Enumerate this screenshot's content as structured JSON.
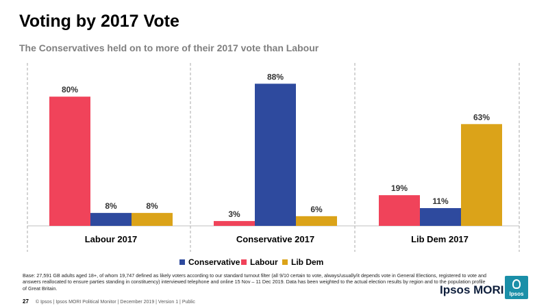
{
  "title": "Voting by 2017 Vote",
  "subtitle": "The Conservatives held on to more of their 2017  vote than Labour",
  "chart_data": {
    "type": "bar",
    "categories": [
      "Labour 2017",
      "Conservative 2017",
      "Lib Dem 2017"
    ],
    "series": [
      {
        "name": "Conservative",
        "color": "#2e4a9e",
        "values": [
          8,
          88,
          11
        ]
      },
      {
        "name": "Labour",
        "color": "#f0435a",
        "values": [
          80,
          3,
          19
        ]
      },
      {
        "name": "Lib Dem",
        "color": "#dba319",
        "values": [
          8,
          6,
          63
        ]
      }
    ],
    "bar_order": [
      "Labour",
      "Conservative",
      "Lib Dem"
    ],
    "value_suffix": "%",
    "ylim": [
      0,
      100
    ],
    "grid": false,
    "legend_position": "bottom"
  },
  "footnote": "Base: 27,591  GB adults aged 18+, of whom 19,747 defined as likely voters according to our standard turnout filter (all  9/10 certain to vote, always/usually/it depends vote in General Elections, registered to vote and answers reallocated to ensure parties standing in constituency) interviewed telephone and online 15 Nov – 11 Dec 2019. Data has been weighted to the actual election results by region and to the population  profile of Great Britain.",
  "footer": {
    "page_number": "27",
    "text": "© Ipsos | Ipsos MORI Political Monitor | December 2019 | Version 1 | Public"
  },
  "brand": {
    "name": "Ipsos MORI",
    "logo_text": "Ipsos"
  }
}
